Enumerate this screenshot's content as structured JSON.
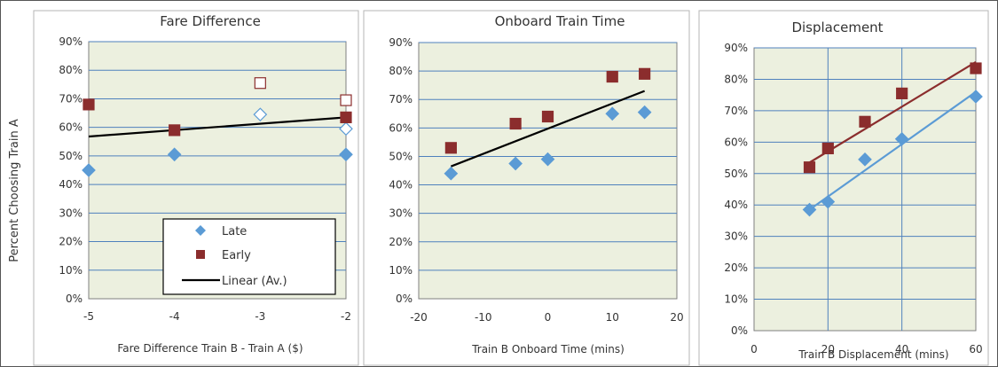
{
  "y_axis_label": "Percent Choosing Train A",
  "legend": {
    "late": "Late",
    "early": "Early",
    "linear": "Linear (Av.)"
  },
  "chart_data": [
    {
      "type": "scatter",
      "title": "Fare Difference",
      "xlabel": "Fare Difference Train B - Train A ($)",
      "xlim": [
        -5,
        -2
      ],
      "x_ticks": [
        -5,
        -4,
        -3,
        -2
      ],
      "ylim": [
        0,
        0.9
      ],
      "y_ticks": [
        "0%",
        "10%",
        "20%",
        "30%",
        "40%",
        "50%",
        "60%",
        "70%",
        "80%",
        "90%"
      ],
      "grid": "horizontal",
      "series": [
        {
          "name": "Late",
          "marker": "diamond",
          "color": "#5b9bd5",
          "filled": true,
          "points": [
            [
              -5,
              0.45
            ],
            [
              -4,
              0.505
            ],
            [
              -2,
              0.505
            ]
          ]
        },
        {
          "name": "Late",
          "marker": "diamond",
          "color": "#5b9bd5",
          "filled": false,
          "points": [
            [
              -3,
              0.645
            ],
            [
              -2,
              0.595
            ]
          ]
        },
        {
          "name": "Early",
          "marker": "square",
          "color": "#8b2d2d",
          "filled": true,
          "points": [
            [
              -5,
              0.68
            ],
            [
              -4,
              0.59
            ],
            [
              -2,
              0.635
            ]
          ]
        },
        {
          "name": "Early",
          "marker": "square",
          "color": "#8b2d2d",
          "filled": false,
          "points": [
            [
              -3,
              0.755
            ],
            [
              -2,
              0.695
            ]
          ]
        },
        {
          "name": "Linear (Av.)",
          "kind": "line",
          "color": "#000000",
          "points": [
            [
              -5,
              0.568
            ],
            [
              -2,
              0.635
            ]
          ]
        }
      ]
    },
    {
      "type": "scatter",
      "title": "Onboard Train Time",
      "xlabel": "Train B Onboard Time (mins)",
      "xlim": [
        -20,
        20
      ],
      "x_ticks": [
        -20,
        -10,
        0,
        10,
        20
      ],
      "ylim": [
        0,
        0.9
      ],
      "y_ticks": [
        "0%",
        "10%",
        "20%",
        "30%",
        "40%",
        "50%",
        "60%",
        "70%",
        "80%",
        "90%"
      ],
      "grid": "horizontal",
      "series": [
        {
          "name": "Late",
          "marker": "diamond",
          "color": "#5b9bd5",
          "filled": true,
          "points": [
            [
              -15,
              0.44
            ],
            [
              -5,
              0.475
            ],
            [
              0,
              0.49
            ],
            [
              10,
              0.65
            ],
            [
              15,
              0.655
            ]
          ]
        },
        {
          "name": "Early",
          "marker": "square",
          "color": "#8b2d2d",
          "filled": true,
          "points": [
            [
              -15,
              0.53
            ],
            [
              -5,
              0.615
            ],
            [
              0,
              0.64
            ],
            [
              10,
              0.78
            ],
            [
              15,
              0.79
            ]
          ]
        },
        {
          "name": "Linear (Av.)",
          "kind": "line",
          "color": "#000000",
          "points": [
            [
              -15,
              0.465
            ],
            [
              15,
              0.73
            ]
          ]
        }
      ]
    },
    {
      "type": "scatter",
      "title": "Displacement",
      "xlabel": "Train B Displacement (mins)",
      "xlim": [
        0,
        60
      ],
      "x_ticks": [
        0,
        20,
        40,
        60
      ],
      "ylim": [
        0,
        0.9
      ],
      "y_ticks": [
        "0%",
        "10%",
        "20%",
        "30%",
        "40%",
        "50%",
        "60%",
        "70%",
        "80%",
        "90%"
      ],
      "grid": "both",
      "series": [
        {
          "name": "Late",
          "marker": "diamond",
          "color": "#5b9bd5",
          "filled": true,
          "points": [
            [
              15,
              0.385
            ],
            [
              20,
              0.41
            ],
            [
              30,
              0.545
            ],
            [
              40,
              0.61
            ],
            [
              60,
              0.745
            ]
          ]
        },
        {
          "name": "Early",
          "marker": "square",
          "color": "#8b2d2d",
          "filled": true,
          "points": [
            [
              15,
              0.52
            ],
            [
              20,
              0.58
            ],
            [
              30,
              0.665
            ],
            [
              40,
              0.755
            ],
            [
              60,
              0.835
            ]
          ]
        },
        {
          "name": "Late trend",
          "kind": "line",
          "color": "#5b9bd5",
          "points": [
            [
              15,
              0.385
            ],
            [
              60,
              0.76
            ]
          ]
        },
        {
          "name": "Early trend",
          "kind": "line",
          "color": "#8b2d2d",
          "points": [
            [
              15,
              0.535
            ],
            [
              60,
              0.855
            ]
          ]
        }
      ]
    }
  ]
}
